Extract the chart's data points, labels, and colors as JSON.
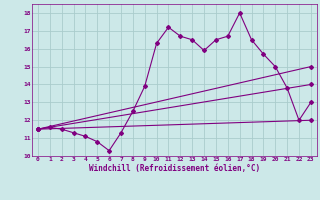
{
  "background_color": "#cce8e8",
  "grid_color": "#aacccc",
  "line_color": "#800080",
  "xlabel": "Windchill (Refroidissement éolien,°C)",
  "xlim": [
    -0.5,
    23.5
  ],
  "ylim": [
    10,
    18.5
  ],
  "xticks": [
    0,
    1,
    2,
    3,
    4,
    5,
    6,
    7,
    8,
    9,
    10,
    11,
    12,
    13,
    14,
    15,
    16,
    17,
    18,
    19,
    20,
    21,
    22,
    23
  ],
  "yticks": [
    10,
    11,
    12,
    13,
    14,
    15,
    16,
    17,
    18
  ],
  "line1_x": [
    0,
    1,
    2,
    3,
    4,
    5,
    6,
    7,
    8,
    9,
    10,
    11,
    12,
    13,
    14,
    15,
    16,
    17,
    18,
    19,
    20,
    21,
    22,
    23
  ],
  "line1_y": [
    11.5,
    11.6,
    11.5,
    11.3,
    11.1,
    10.8,
    10.3,
    11.3,
    12.5,
    13.9,
    16.3,
    17.2,
    16.7,
    16.5,
    15.9,
    16.5,
    16.7,
    18.0,
    16.5,
    15.7,
    15.0,
    13.8,
    12.0,
    13.0
  ],
  "line2_x": [
    0,
    23
  ],
  "line2_y": [
    11.5,
    12.0
  ],
  "line3_x": [
    0,
    23
  ],
  "line3_y": [
    11.5,
    15.0
  ],
  "line4_x": [
    0,
    23
  ],
  "line4_y": [
    11.5,
    14.0
  ]
}
